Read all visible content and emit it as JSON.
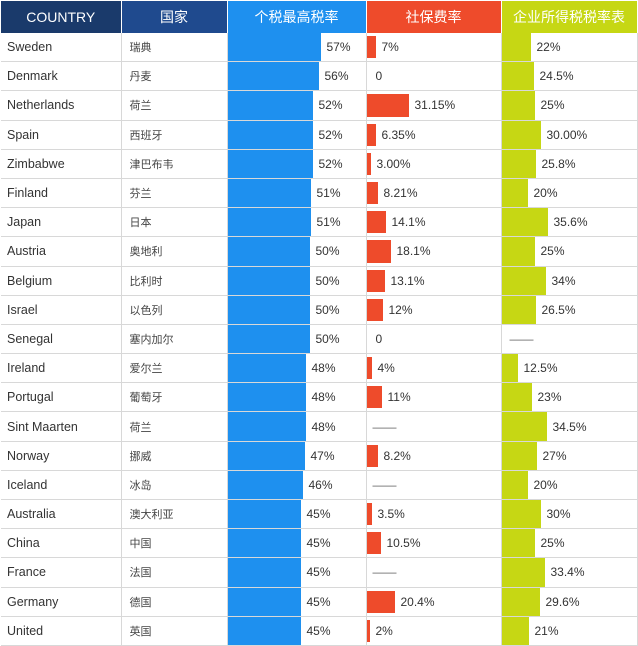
{
  "headers": {
    "country": "COUNTRY",
    "cn": "国家",
    "tax": "个税最高税率",
    "ss": "社保费率",
    "corp": "企业所得税税率表"
  },
  "colors": {
    "country_header": "#1a3a6b",
    "cn_header": "#1f4a8e",
    "tax": "#1e90ef",
    "ss": "#ee4b2b",
    "corp": "#c6d714"
  },
  "chart_data": {
    "type": "table",
    "columns": [
      "COUNTRY",
      "国家",
      "个税最高税率",
      "社保费率",
      "企业所得税税率表"
    ],
    "rows": [
      {
        "country": "Sweden",
        "cn": "瑞典",
        "tax": 57,
        "tax_label": "57%",
        "ss": 7,
        "ss_label": "7%",
        "corp": 22,
        "corp_label": "22%"
      },
      {
        "country": "Denmark",
        "cn": "丹麦",
        "tax": 56,
        "tax_label": "56%",
        "ss": 0,
        "ss_label": "0",
        "corp": 24.5,
        "corp_label": "24.5%"
      },
      {
        "country": "Netherlands",
        "cn": "荷兰",
        "tax": 52,
        "tax_label": "52%",
        "ss": 31.15,
        "ss_label": "31.15%",
        "corp": 25,
        "corp_label": "25%"
      },
      {
        "country": "Spain",
        "cn": "西班牙",
        "tax": 52,
        "tax_label": "52%",
        "ss": 6.35,
        "ss_label": "6.35%",
        "corp": 30,
        "corp_label": "30.00%"
      },
      {
        "country": "Zimbabwe",
        "cn": "津巴布韦",
        "tax": 52,
        "tax_label": "52%",
        "ss": 3,
        "ss_label": "3.00%",
        "corp": 25.8,
        "corp_label": "25.8%"
      },
      {
        "country": "Finland",
        "cn": "芬兰",
        "tax": 51,
        "tax_label": "51%",
        "ss": 8.21,
        "ss_label": "8.21%",
        "corp": 20,
        "corp_label": "20%"
      },
      {
        "country": "Japan",
        "cn": "日本",
        "tax": 51,
        "tax_label": "51%",
        "ss": 14.1,
        "ss_label": "14.1%",
        "corp": 35.6,
        "corp_label": "35.6%"
      },
      {
        "country": "Austria",
        "cn": "奥地利",
        "tax": 50,
        "tax_label": "50%",
        "ss": 18.1,
        "ss_label": "18.1%",
        "corp": 25,
        "corp_label": "25%"
      },
      {
        "country": "Belgium",
        "cn": "比利时",
        "tax": 50,
        "tax_label": "50%",
        "ss": 13.1,
        "ss_label": "13.1%",
        "corp": 34,
        "corp_label": "34%"
      },
      {
        "country": "Israel",
        "cn": "以色列",
        "tax": 50,
        "tax_label": "50%",
        "ss": 12,
        "ss_label": "12%",
        "corp": 26.5,
        "corp_label": "26.5%"
      },
      {
        "country": "Senegal",
        "cn": "塞内加尔",
        "tax": 50,
        "tax_label": "50%",
        "ss": 0,
        "ss_label": "0",
        "corp": null,
        "corp_label": "——"
      },
      {
        "country": "Ireland",
        "cn": "爱尔兰",
        "tax": 48,
        "tax_label": "48%",
        "ss": 4,
        "ss_label": "4%",
        "corp": 12.5,
        "corp_label": "12.5%"
      },
      {
        "country": "Portugal",
        "cn": "葡萄牙",
        "tax": 48,
        "tax_label": "48%",
        "ss": 11,
        "ss_label": "11%",
        "corp": 23,
        "corp_label": "23%"
      },
      {
        "country": "Sint Maarten",
        "cn": "荷兰",
        "tax": 48,
        "tax_label": "48%",
        "ss": null,
        "ss_label": "——",
        "corp": 34.5,
        "corp_label": "34.5%"
      },
      {
        "country": "Norway",
        "cn": "挪威",
        "tax": 47,
        "tax_label": "47%",
        "ss": 8.2,
        "ss_label": "8.2%",
        "corp": 27,
        "corp_label": "27%"
      },
      {
        "country": "Iceland",
        "cn": "冰岛",
        "tax": 46,
        "tax_label": "46%",
        "ss": null,
        "ss_label": "——",
        "corp": 20,
        "corp_label": "20%"
      },
      {
        "country": "Australia",
        "cn": "澳大利亚",
        "tax": 45,
        "tax_label": "45%",
        "ss": 3.5,
        "ss_label": "3.5%",
        "corp": 30,
        "corp_label": "30%"
      },
      {
        "country": "China",
        "cn": "中国",
        "tax": 45,
        "tax_label": "45%",
        "ss": 10.5,
        "ss_label": "10.5%",
        "corp": 25,
        "corp_label": "25%"
      },
      {
        "country": "France",
        "cn": "法国",
        "tax": 45,
        "tax_label": "45%",
        "ss": null,
        "ss_label": "——",
        "corp": 33.4,
        "corp_label": "33.4%"
      },
      {
        "country": "Germany",
        "cn": "德国",
        "tax": 45,
        "tax_label": "45%",
        "ss": 20.4,
        "ss_label": "20.4%",
        "corp": 29.6,
        "corp_label": "29.6%"
      },
      {
        "country": "United",
        "cn": "英国",
        "tax": 45,
        "tax_label": "45%",
        "ss": 2,
        "ss_label": "2%",
        "corp": 21,
        "corp_label": "21%"
      }
    ]
  }
}
